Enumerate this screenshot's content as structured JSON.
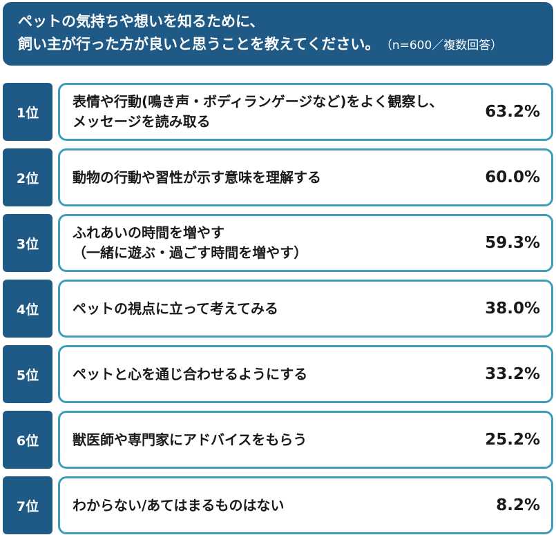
{
  "header": {
    "line1": "ペットの気持ちや想いを知るために、",
    "line2": "飼い主が行った方が良いと思うことを教えてください。",
    "note": "（n=600／複数回答）"
  },
  "chart_data": {
    "type": "table",
    "title": "ペットの気持ちや想いを知るために、飼い主が行った方が良いと思うことを教えてください。",
    "note": "（n=600／複数回答）",
    "unit": "%",
    "rows": [
      {
        "rank": "1位",
        "lines": [
          "表情や行動(鳴き声・ボディランゲージなど)をよく観察し、",
          "メッセージを読み取る"
        ],
        "value": 63.2,
        "value_label": "63.2%"
      },
      {
        "rank": "2位",
        "lines": [
          "動物の行動や習性が示す意味を理解する"
        ],
        "value": 60.0,
        "value_label": "60.0%"
      },
      {
        "rank": "3位",
        "lines": [
          "ふれあいの時間を増やす",
          "（一緒に遊ぶ・過ごす時間を増やす）"
        ],
        "value": 59.3,
        "value_label": "59.3%"
      },
      {
        "rank": "4位",
        "lines": [
          "ペットの視点に立って考えてみる"
        ],
        "value": 38.0,
        "value_label": "38.0%"
      },
      {
        "rank": "5位",
        "lines": [
          "ペットと心を通じ合わせるようにする"
        ],
        "value": 33.2,
        "value_label": "33.2%"
      },
      {
        "rank": "6位",
        "lines": [
          "獣医師や専門家にアドバイスをもらう"
        ],
        "value": 25.2,
        "value_label": "25.2%"
      },
      {
        "rank": "7位",
        "lines": [
          "わからない/あてはまるものはない"
        ],
        "value": 8.2,
        "value_label": "8.2%"
      }
    ]
  },
  "colors": {
    "header_bg": "#1f5a86",
    "rank_bg": "#1f5a86",
    "card_border": "#3d9dba",
    "text": "#1a1a1a"
  }
}
